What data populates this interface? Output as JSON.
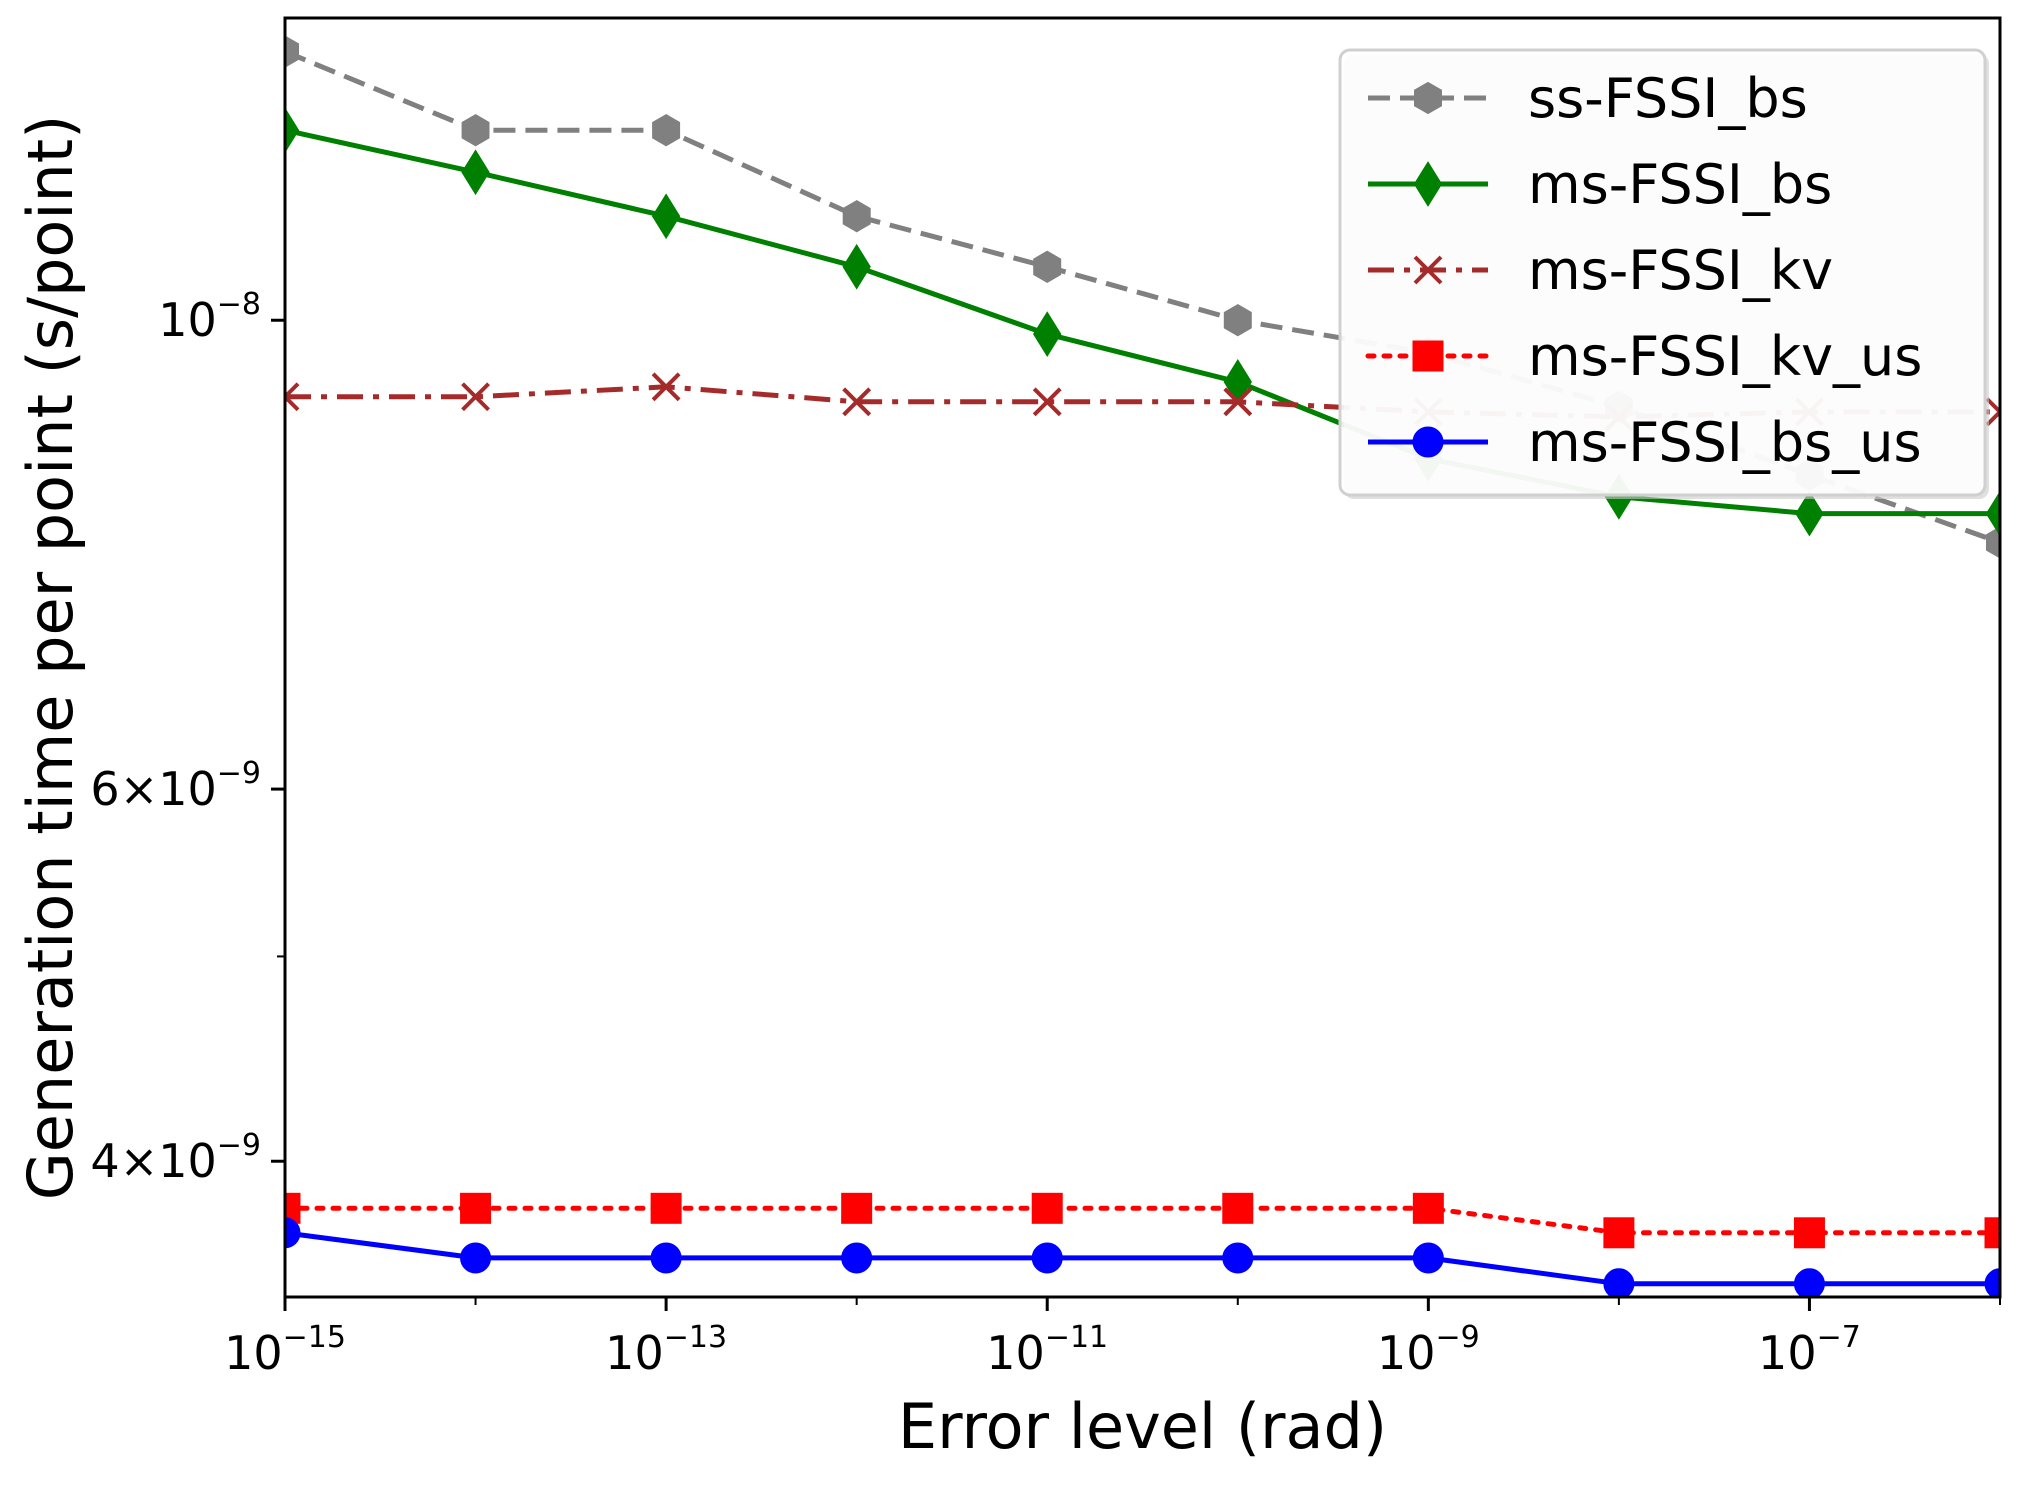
{
  "chart_data": {
    "type": "line",
    "title": "",
    "xlabel": "Error level (rad)",
    "ylabel": "Generation time per point (s/point)",
    "x_scale": "log",
    "y_scale": "log",
    "x": [
      1e-15,
      1e-14,
      1e-13,
      1e-12,
      1e-11,
      1e-10,
      1e-09,
      1e-08,
      1e-07,
      1e-06
    ],
    "xlim": [
      1e-15,
      1e-06
    ],
    "ylim": [
      3.45e-09,
      1.39e-08
    ],
    "x_ticks": [
      {
        "value": 1e-15,
        "base": "10",
        "exp": "−15"
      },
      {
        "value": 1e-13,
        "base": "10",
        "exp": "−13"
      },
      {
        "value": 1e-11,
        "base": "10",
        "exp": "−11"
      },
      {
        "value": 1e-09,
        "base": "10",
        "exp": "−9"
      },
      {
        "value": 1e-07,
        "base": "10",
        "exp": "−7"
      }
    ],
    "x_minor_ticks": [
      1e-14,
      1e-12,
      1e-10,
      1e-08,
      1e-06
    ],
    "y_ticks": [
      {
        "value": 1e-08,
        "base": "10",
        "exp": "−8"
      },
      {
        "value": 6e-09,
        "base": "6×10",
        "exp": "−9"
      },
      {
        "value": 4e-09,
        "base": "4×10",
        "exp": "−9"
      }
    ],
    "y_minor_ticks": [
      5e-09
    ],
    "legend_position": "top-right",
    "series": [
      {
        "name": "ss-FSSI_bs",
        "color": "#808080",
        "line_style": "dashed",
        "marker": "hexagon",
        "values": [
          1.34e-08,
          1.23e-08,
          1.23e-08,
          1.12e-08,
          1.06e-08,
          1e-08,
          9.65e-09,
          9.1e-09,
          8.45e-09,
          7.85e-09
        ]
      },
      {
        "name": "ms-FSSI_bs",
        "color": "#008000",
        "line_style": "solid",
        "marker": "thin-diamond",
        "values": [
          1.23e-08,
          1.175e-08,
          1.12e-08,
          1.06e-08,
          9.85e-09,
          9.35e-09,
          8.6e-09,
          8.25e-09,
          8.1e-09,
          8.1e-09
        ]
      },
      {
        "name": "ms-FSSI_kv",
        "color": "#a52a2a",
        "line_style": "dashdot",
        "marker": "x",
        "values": [
          9.2e-09,
          9.2e-09,
          9.3e-09,
          9.15e-09,
          9.15e-09,
          9.15e-09,
          9.05e-09,
          9e-09,
          9.05e-09,
          9.05e-09
        ]
      },
      {
        "name": "ms-FSSI_kv_us",
        "color": "#ff0000",
        "line_style": "dotted",
        "marker": "square",
        "values": [
          3.8e-09,
          3.8e-09,
          3.8e-09,
          3.8e-09,
          3.8e-09,
          3.8e-09,
          3.8e-09,
          3.7e-09,
          3.7e-09,
          3.7e-09
        ]
      },
      {
        "name": "ms-FSSI_bs_us",
        "color": "#0000ff",
        "line_style": "solid",
        "marker": "circle",
        "values": [
          3.7e-09,
          3.6e-09,
          3.6e-09,
          3.6e-09,
          3.6e-09,
          3.6e-09,
          3.6e-09,
          3.5e-09,
          3.5e-09,
          3.5e-09
        ]
      }
    ]
  }
}
